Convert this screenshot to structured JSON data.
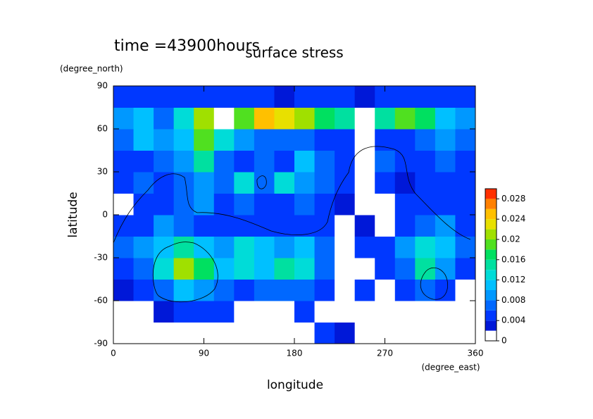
{
  "chart_data": {
    "type": "heatmap",
    "title": "surface stress",
    "subtitle": "time =43900hours",
    "x_label": "longitude",
    "x_unit": "(degree_east)",
    "y_label": "latitude",
    "y_unit": "(degree_north)",
    "x": [
      10,
      30,
      50,
      70,
      90,
      110,
      130,
      150,
      170,
      190,
      210,
      230,
      250,
      270,
      290,
      310,
      330,
      350
    ],
    "y": [
      -82.5,
      -67.5,
      -52.5,
      -37.5,
      -22.5,
      -7.5,
      7.5,
      22.5,
      37.5,
      52.5,
      67.5,
      82.5
    ],
    "z": [
      [
        0.001,
        0.001,
        0.001,
        0.001,
        0.001,
        0.001,
        0.001,
        0.001,
        0.001,
        0.001,
        0.004,
        0.003,
        0.001,
        0.001,
        0.001,
        0.001,
        0.001,
        0.001
      ],
      [
        0.001,
        0.001,
        0.002,
        0.004,
        0.004,
        0.004,
        0.001,
        0.001,
        0.001,
        0.004,
        0.001,
        0.001,
        0.001,
        0.001,
        0.001,
        0.001,
        0.001,
        0.001
      ],
      [
        0.002,
        0.004,
        0.006,
        0.01,
        0.008,
        0.006,
        0.004,
        0.006,
        0.006,
        0.006,
        0.004,
        0.001,
        0.004,
        0.001,
        0.004,
        0.006,
        0.004,
        0.001
      ],
      [
        0.004,
        0.006,
        0.012,
        0.02,
        0.016,
        0.01,
        0.012,
        0.01,
        0.014,
        0.012,
        0.006,
        0.001,
        0.001,
        0.004,
        0.006,
        0.014,
        0.008,
        0.004
      ],
      [
        0.006,
        0.008,
        0.01,
        0.014,
        0.01,
        0.008,
        0.012,
        0.01,
        0.008,
        0.01,
        0.006,
        0.001,
        0.004,
        0.004,
        0.008,
        0.012,
        0.01,
        0.006
      ],
      [
        0.004,
        0.004,
        0.008,
        0.006,
        0.004,
        0.004,
        0.004,
        0.004,
        0.004,
        0.004,
        0.004,
        0.001,
        0.002,
        0.001,
        0.004,
        0.006,
        0.008,
        0.004
      ],
      [
        0.001,
        0.004,
        0.004,
        0.006,
        0.008,
        0.004,
        0.006,
        0.004,
        0.004,
        0.006,
        0.004,
        0.002,
        0.001,
        0.001,
        0.004,
        0.004,
        0.004,
        0.004
      ],
      [
        0.004,
        0.006,
        0.004,
        0.006,
        0.008,
        0.006,
        0.012,
        0.006,
        0.012,
        0.008,
        0.006,
        0.004,
        0.001,
        0.004,
        0.002,
        0.004,
        0.004,
        0.004
      ],
      [
        0.004,
        0.004,
        0.006,
        0.008,
        0.014,
        0.006,
        0.004,
        0.006,
        0.004,
        0.01,
        0.006,
        0.004,
        0.001,
        0.006,
        0.004,
        0.004,
        0.006,
        0.004
      ],
      [
        0.006,
        0.01,
        0.008,
        0.01,
        0.018,
        0.012,
        0.008,
        0.006,
        0.006,
        0.006,
        0.004,
        0.004,
        0.001,
        0.004,
        0.004,
        0.006,
        0.008,
        0.006
      ],
      [
        0.008,
        0.01,
        0.006,
        0.012,
        0.02,
        0.001,
        0.018,
        0.024,
        0.022,
        0.02,
        0.016,
        0.014,
        0.001,
        0.014,
        0.018,
        0.016,
        0.01,
        0.008
      ],
      [
        0.004,
        0.005,
        0.005,
        0.004,
        0.004,
        0.004,
        0.005,
        0.004,
        0.003,
        0.004,
        0.004,
        0.004,
        0.003,
        0.005,
        0.005,
        0.005,
        0.004,
        0.004
      ]
    ],
    "xlim": [
      0,
      360
    ],
    "xticks": [
      0,
      90,
      180,
      270,
      360
    ],
    "ylim": [
      -90,
      90
    ],
    "yticks": [
      -90,
      -60,
      -30,
      0,
      30,
      60,
      90
    ],
    "levels": [
      0,
      0.002,
      0.004,
      0.006,
      0.008,
      0.01,
      0.012,
      0.014,
      0.016,
      0.018,
      0.02,
      0.022,
      0.024,
      0.026,
      0.028,
      0.03
    ],
    "colors": [
      "#ffffff",
      "#0018d8",
      "#0038ff",
      "#0068ff",
      "#0098ff",
      "#00c0ff",
      "#00dcd8",
      "#00e0a0",
      "#00e060",
      "#50e020",
      "#a0e000",
      "#e8e000",
      "#ffc000",
      "#ff8000",
      "#ff3000"
    ],
    "cblim": [
      0,
      0.03
    ],
    "cbticks": [
      0,
      0.004,
      0.008,
      0.012,
      0.016,
      0.02,
      0.024,
      0.028
    ]
  }
}
